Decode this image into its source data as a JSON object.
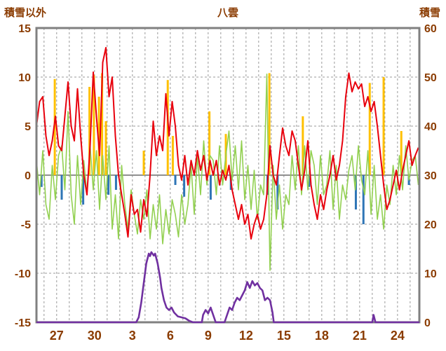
{
  "colors": {
    "text": "#8a3b00",
    "frame": "#808080",
    "grid": "#9a9a9a",
    "zero_line": "#808080",
    "red": "#e8000d",
    "green": "#92d050",
    "yellow": "#ffc000",
    "blue": "#2e75b6",
    "purple": "#7030a0"
  },
  "chart_data": {
    "type": "line",
    "title": "八雲",
    "left_axis": {
      "label": "積雪以外",
      "range": [
        -15,
        15
      ],
      "ticks": [
        15,
        10,
        5,
        0,
        -5,
        -10,
        -15
      ]
    },
    "right_axis": {
      "label": "積雪",
      "range": [
        0,
        60
      ],
      "ticks": [
        60,
        50,
        40,
        30,
        20,
        10,
        0
      ]
    },
    "x_axis": {
      "tick_labels": [
        "27",
        "30",
        "3",
        "6",
        "9",
        "12",
        "15",
        "18",
        "21",
        "24"
      ],
      "tick_positions_days": [
        1.6,
        4.6,
        7.6,
        10.6,
        13.6,
        16.6,
        19.6,
        22.6,
        25.6,
        28.6
      ],
      "range_days": [
        0,
        30.33
      ],
      "day_gridline_start": 0.6,
      "day_gridline_step": 1
    },
    "sample_step_days": 0.25,
    "series": {
      "red_line": {
        "name": "red-line-left-axis",
        "color": "#e8000d",
        "axis": "left",
        "values": [
          5,
          7.5,
          8,
          4,
          2,
          3.5,
          6,
          3,
          2.5,
          6,
          9.5,
          5,
          3.5,
          8.8,
          4,
          0,
          -2,
          3,
          10.5,
          6,
          2,
          11.5,
          13,
          8,
          10,
          4,
          0,
          -2,
          -4,
          -6.3,
          -2,
          -4,
          -3.5,
          -5.8,
          -2.5,
          -4.2,
          0,
          5.5,
          2,
          4,
          2.5,
          8.3,
          4,
          7.5,
          5,
          1,
          -0.5,
          2,
          -1,
          1.5,
          0,
          2.5,
          0.5,
          2,
          -0.5,
          1.5,
          0,
          1.5,
          -1,
          0.5,
          -0.5,
          1,
          -1.5,
          -3,
          -4.5,
          -3,
          -5,
          -4,
          -6.5,
          -5,
          -4,
          -5.5,
          -4.5,
          -2,
          3,
          0,
          -1,
          2,
          4.8,
          3,
          2,
          4.5,
          3.5,
          1,
          -1.5,
          0.5,
          3.5,
          -1,
          -3,
          -4.5,
          -2,
          -3.5,
          -1.5,
          0,
          2,
          -0.5,
          1,
          3.5,
          8,
          10.4,
          8.5,
          9.5,
          8.8,
          9.3,
          7,
          8,
          6.5,
          7.5,
          5,
          2,
          -1,
          -3.5,
          -2.5,
          -1,
          0.5,
          -1.5,
          0.5,
          2,
          3.5,
          1,
          2,
          2.8
        ]
      },
      "green_line": {
        "name": "green-line-left-axis",
        "color": "#92d050",
        "axis": "left",
        "values": [
          1.5,
          -2,
          2.5,
          -3,
          -4.5,
          1,
          -2.5,
          2,
          3,
          -1.5,
          6.5,
          -2,
          -5,
          2,
          -3,
          1.5,
          -2,
          3,
          -1.5,
          2.5,
          -3.5,
          2,
          -2.5,
          3,
          -5.5,
          -2,
          -6.5,
          1,
          -3,
          -5.5,
          -1.5,
          -4,
          -6,
          -2.5,
          -4.5,
          -1.5,
          -6.5,
          -3,
          -5.5,
          -2,
          -7,
          -3.5,
          -6,
          -2.5,
          -4,
          -6.3,
          -2,
          -5,
          -3,
          1,
          -4,
          2,
          -2,
          3.5,
          -1,
          2,
          1.5,
          -2,
          3,
          -1,
          2,
          4.5,
          -0.5,
          3,
          -1.5,
          3.5,
          -2.5,
          1,
          -3.5,
          0.5,
          -4.5,
          -1,
          -2,
          10.3,
          -9.7,
          1,
          -4.5,
          -1,
          -5.5,
          -2,
          -3,
          2,
          -1.5,
          3,
          -2,
          3,
          -1.5,
          2.5,
          1,
          -3,
          2,
          -2,
          -1,
          2.5,
          -3.5,
          1,
          -4.5,
          -1,
          -2.5,
          0.5,
          2,
          -1.5,
          3,
          -0.5,
          -2,
          2.5,
          -4,
          1,
          -4.5,
          -2,
          -5.5,
          -1,
          -3,
          1,
          -2,
          2,
          -1.5,
          3,
          -0.5,
          1.5,
          2,
          -1
        ]
      },
      "yellow_bars": {
        "name": "yellow-bars-left-axis",
        "color": "#ffc000",
        "axis": "left",
        "points": [
          [
            1.45,
            9.8
          ],
          [
            4.2,
            9
          ],
          [
            4.55,
            10.2
          ],
          [
            4.95,
            8
          ],
          [
            5.2,
            10.4
          ],
          [
            5.5,
            5.5
          ],
          [
            8.5,
            2.5
          ],
          [
            10.4,
            9.7
          ],
          [
            10.8,
            4
          ],
          [
            13.7,
            6.5
          ],
          [
            15.0,
            4.2
          ],
          [
            18.45,
            10.4
          ],
          [
            21.1,
            6
          ],
          [
            26.4,
            9.4
          ],
          [
            27.5,
            10
          ],
          [
            28.9,
            4.5
          ]
        ]
      },
      "blue_bars": {
        "name": "blue-bars-left-axis",
        "color": "#2e75b6",
        "axis": "left",
        "points": [
          [
            0.4,
            -1.2
          ],
          [
            2.0,
            -2.5
          ],
          [
            3.7,
            -3
          ],
          [
            5.7,
            -2
          ],
          [
            6.3,
            -1.5
          ],
          [
            11.0,
            -1
          ],
          [
            11.7,
            -2.2
          ],
          [
            13.8,
            -2.5
          ],
          [
            15.4,
            -1.5
          ],
          [
            18.3,
            -2
          ],
          [
            19.1,
            -3.5
          ],
          [
            21.6,
            -1.2
          ],
          [
            25.3,
            -3.5
          ],
          [
            25.9,
            -5
          ],
          [
            29.5,
            -1
          ]
        ]
      },
      "purple_line": {
        "name": "purple-snow-depth-right-axis",
        "color": "#7030a0",
        "axis": "right",
        "points": [
          [
            0,
            0
          ],
          [
            7.9,
            0
          ],
          [
            8.1,
            1
          ],
          [
            8.3,
            4
          ],
          [
            8.5,
            8
          ],
          [
            8.7,
            12
          ],
          [
            8.9,
            14
          ],
          [
            9.0,
            13.5
          ],
          [
            9.1,
            14.3
          ],
          [
            9.3,
            13.6
          ],
          [
            9.4,
            14
          ],
          [
            9.6,
            12
          ],
          [
            9.8,
            9
          ],
          [
            9.9,
            7
          ],
          [
            10.1,
            4.5
          ],
          [
            10.3,
            3
          ],
          [
            10.5,
            2.5
          ],
          [
            10.7,
            3
          ],
          [
            10.9,
            2
          ],
          [
            11.2,
            1.2
          ],
          [
            11.5,
            1
          ],
          [
            11.8,
            0.8
          ],
          [
            12.1,
            0.3
          ],
          [
            12.4,
            0
          ],
          [
            13.1,
            0
          ],
          [
            13.2,
            1.5
          ],
          [
            13.4,
            2.5
          ],
          [
            13.6,
            1.8
          ],
          [
            13.8,
            3
          ],
          [
            14.0,
            1.5
          ],
          [
            14.2,
            0
          ],
          [
            14.9,
            0
          ],
          [
            15.1,
            1.5
          ],
          [
            15.3,
            3
          ],
          [
            15.5,
            2.5
          ],
          [
            15.7,
            4
          ],
          [
            15.9,
            5
          ],
          [
            16.1,
            4.5
          ],
          [
            16.3,
            5.5
          ],
          [
            16.5,
            6.5
          ],
          [
            16.7,
            8.2
          ],
          [
            16.9,
            7
          ],
          [
            17.1,
            8.4
          ],
          [
            17.3,
            7.5
          ],
          [
            17.5,
            8
          ],
          [
            17.7,
            7
          ],
          [
            17.9,
            6.5
          ],
          [
            18.1,
            4.5
          ],
          [
            18.3,
            5
          ],
          [
            18.5,
            4.5
          ],
          [
            18.7,
            2
          ],
          [
            18.8,
            0
          ],
          [
            26.6,
            0
          ],
          [
            26.7,
            1.5
          ],
          [
            26.85,
            0
          ],
          [
            30.33,
            0
          ]
        ]
      }
    }
  }
}
